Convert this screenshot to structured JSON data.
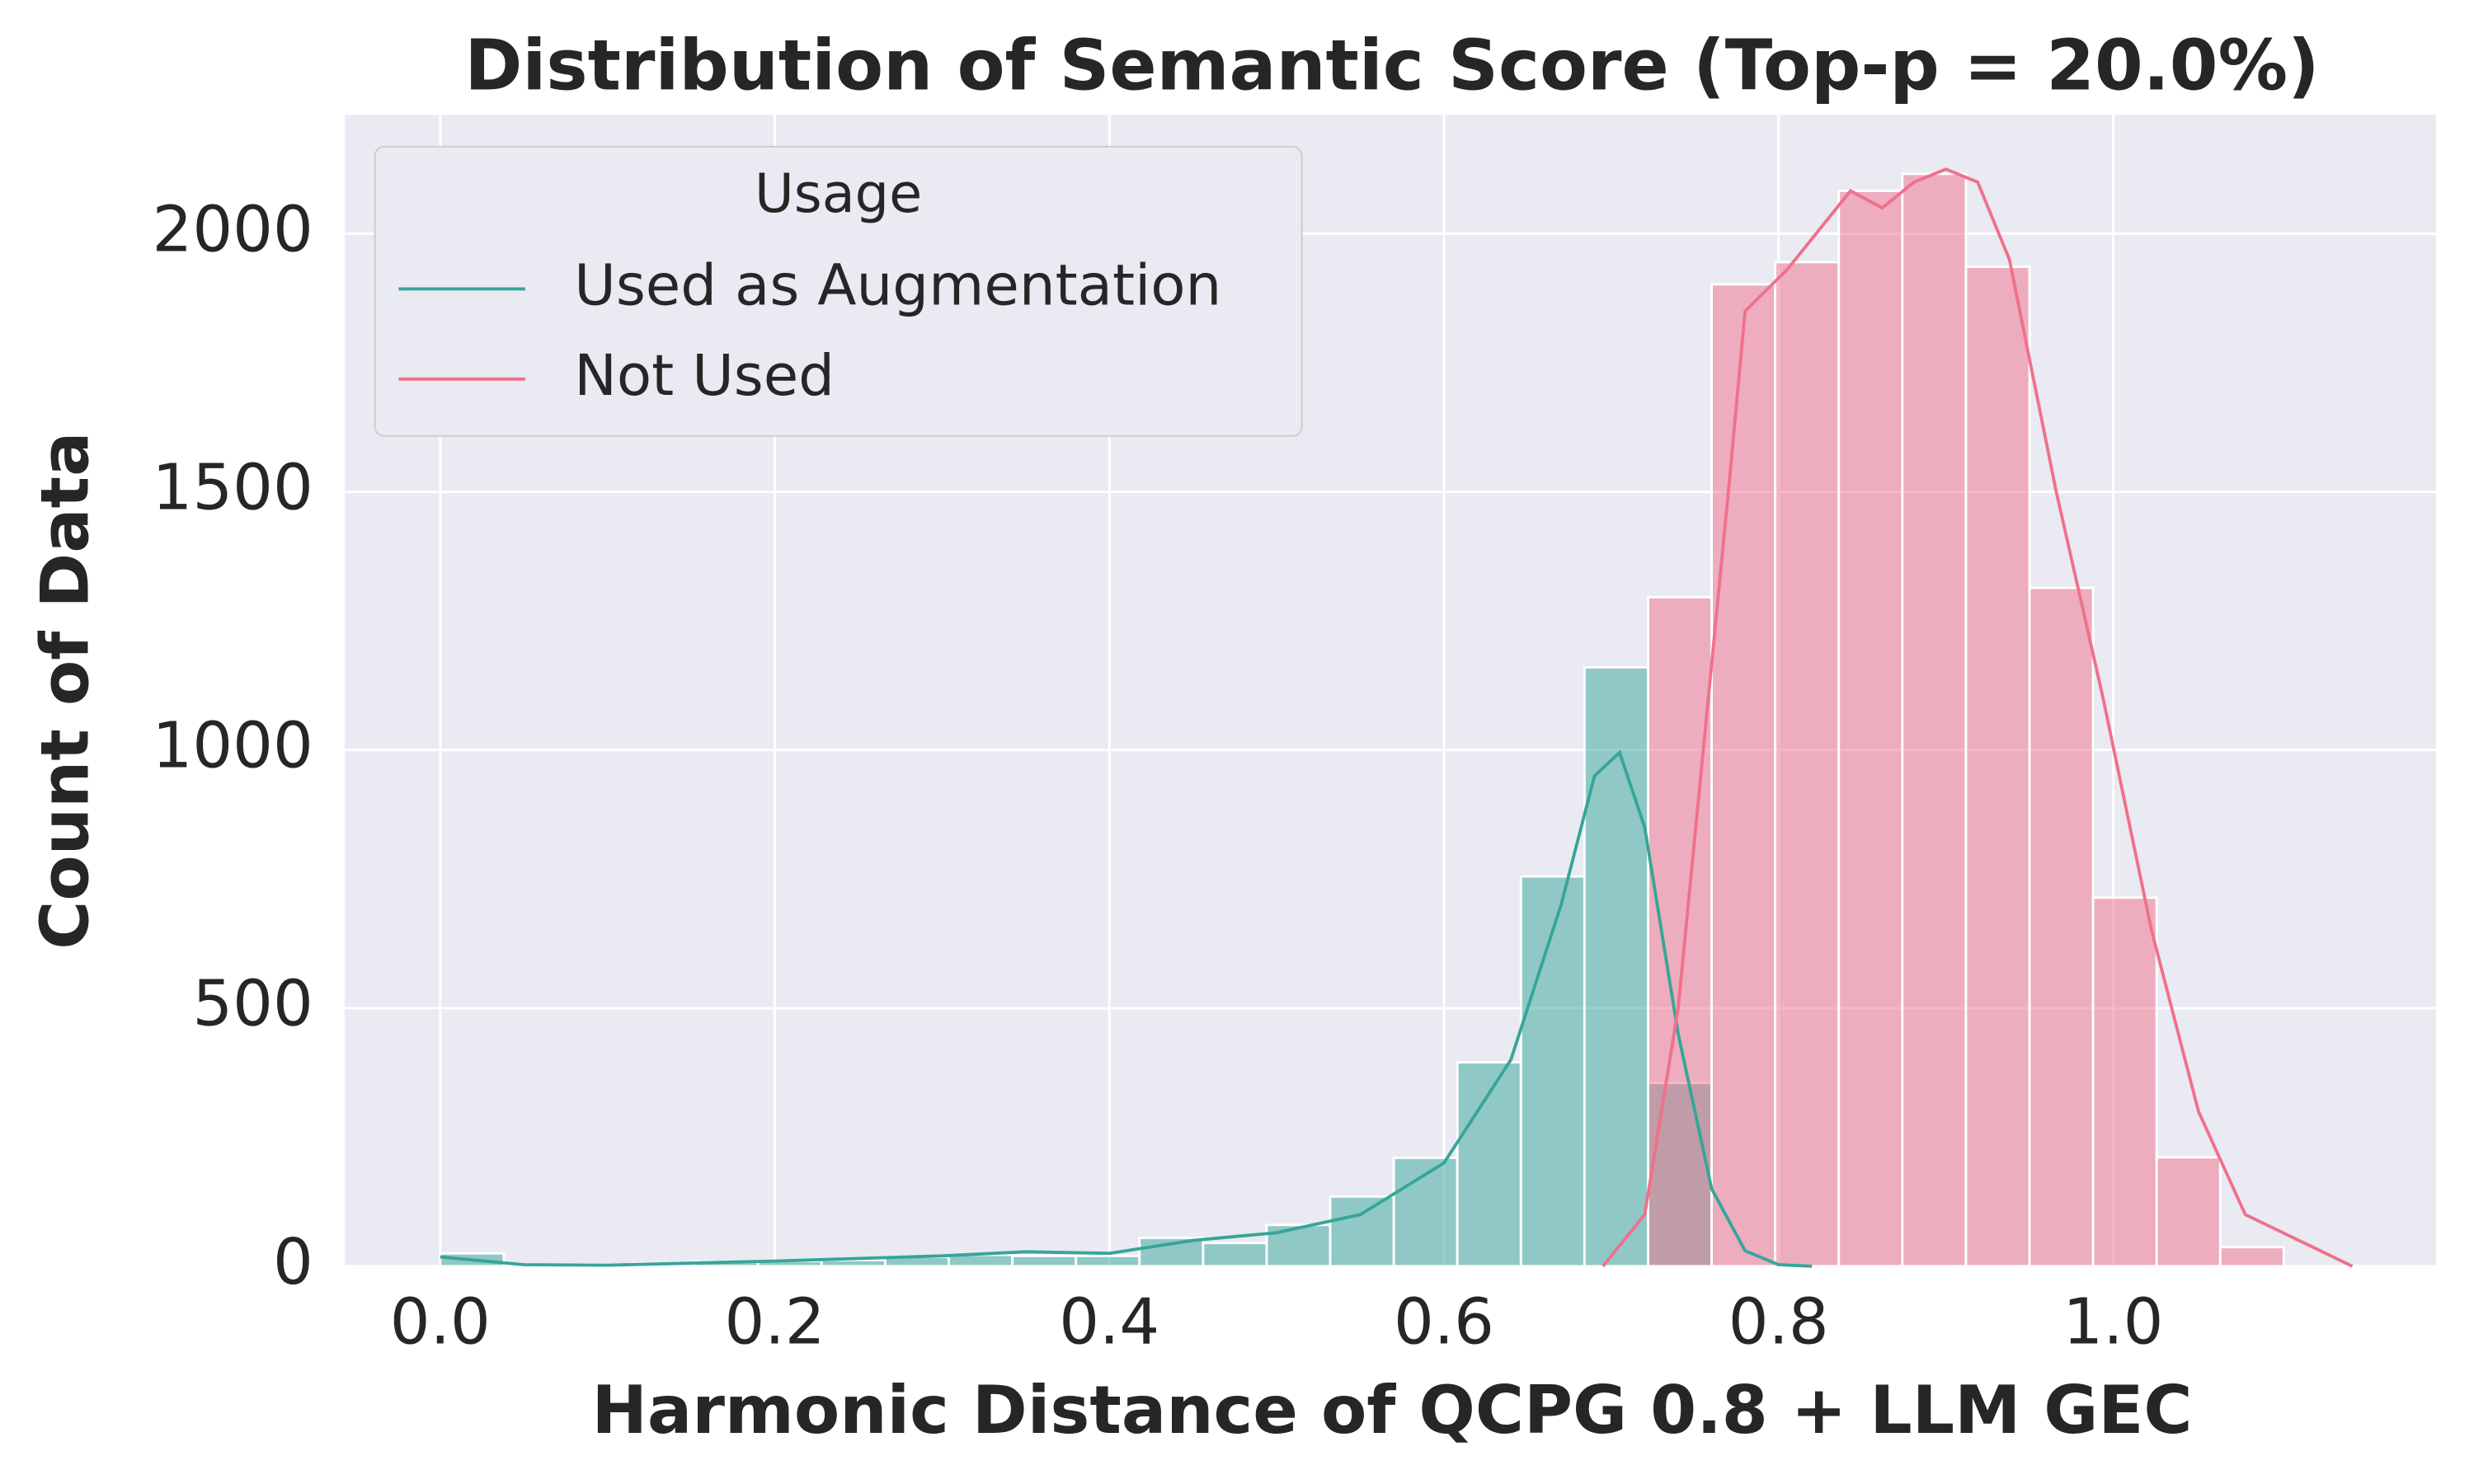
{
  "chart_data": {
    "type": "histogram",
    "title": "Distribution of Semantic Score (Top-p = 20.0%)",
    "x_label": "Harmonic Distance of QCPG 0.8 + LLM GEC",
    "y_label": "Count of Data",
    "legend_title": "Usage",
    "legend": "upper left",
    "grid": true,
    "xlim": [
      -0.057,
      1.193
    ],
    "ylim": [
      0,
      2230
    ],
    "xticks": [
      {
        "value": 0,
        "label": "0.0"
      },
      {
        "value": 0.2,
        "label": "0.2"
      },
      {
        "value": 0.4,
        "label": "0.4"
      },
      {
        "value": 0.6,
        "label": "0.6"
      },
      {
        "value": 0.8,
        "label": "0.8"
      },
      {
        "value": 1,
        "label": "1.0"
      }
    ],
    "yticks": [
      0,
      500,
      1000,
      1500,
      2000
    ],
    "bins": [
      0,
      0.038,
      0.076,
      0.114,
      0.152,
      0.19,
      0.228,
      0.266,
      0.304,
      0.342,
      0.38,
      0.418,
      0.456,
      0.494,
      0.532,
      0.57,
      0.608,
      0.646,
      0.684,
      0.722,
      0.76,
      0.798,
      0.836,
      0.874,
      0.912,
      0.95,
      0.988,
      1.026,
      1.064,
      1.102
    ],
    "series": [
      {
        "name": "Used as Augmentation",
        "color": "#36a59a",
        "values": [
          25,
          2,
          3,
          5,
          8,
          10,
          12,
          18,
          22,
          20,
          20,
          55,
          45,
          80,
          135,
          210,
          395,
          755,
          1160,
          355,
          0,
          0,
          0,
          0,
          0,
          0,
          0,
          0,
          0
        ],
        "kde_x": [
          0,
          0.05,
          0.1,
          0.2,
          0.3,
          0.35,
          0.4,
          0.45,
          0.5,
          0.55,
          0.6,
          0.64,
          0.67,
          0.69,
          0.705,
          0.72,
          0.74,
          0.76,
          0.78,
          0.8,
          0.82
        ],
        "kde_values": [
          18,
          3,
          2,
          10,
          20,
          28,
          25,
          50,
          65,
          100,
          200,
          400,
          700,
          950,
          995,
          850,
          450,
          150,
          30,
          3,
          0
        ]
      },
      {
        "name": "Not Used",
        "color": "#f0708a",
        "values": [
          0,
          0,
          0,
          0,
          0,
          0,
          0,
          0,
          0,
          0,
          0,
          0,
          0,
          0,
          0,
          0,
          0,
          0,
          0,
          1296,
          1902,
          1945,
          2083,
          2116,
          1936,
          1314,
          714,
          211,
          37
        ],
        "kde_x": [
          0.695,
          0.72,
          0.74,
          0.755,
          0.77,
          0.78,
          0.805,
          0.843,
          0.862,
          0.881,
          0.9,
          0.919,
          0.938,
          0.966,
          0.994,
          1.023,
          1.051,
          1.079,
          1.143
        ],
        "kde_values": [
          0,
          100,
          500,
          1000,
          1500,
          1850,
          1930,
          2083,
          2050,
          2100,
          2125,
          2100,
          1950,
          1500,
          1100,
          650,
          300,
          100,
          0
        ]
      }
    ]
  }
}
